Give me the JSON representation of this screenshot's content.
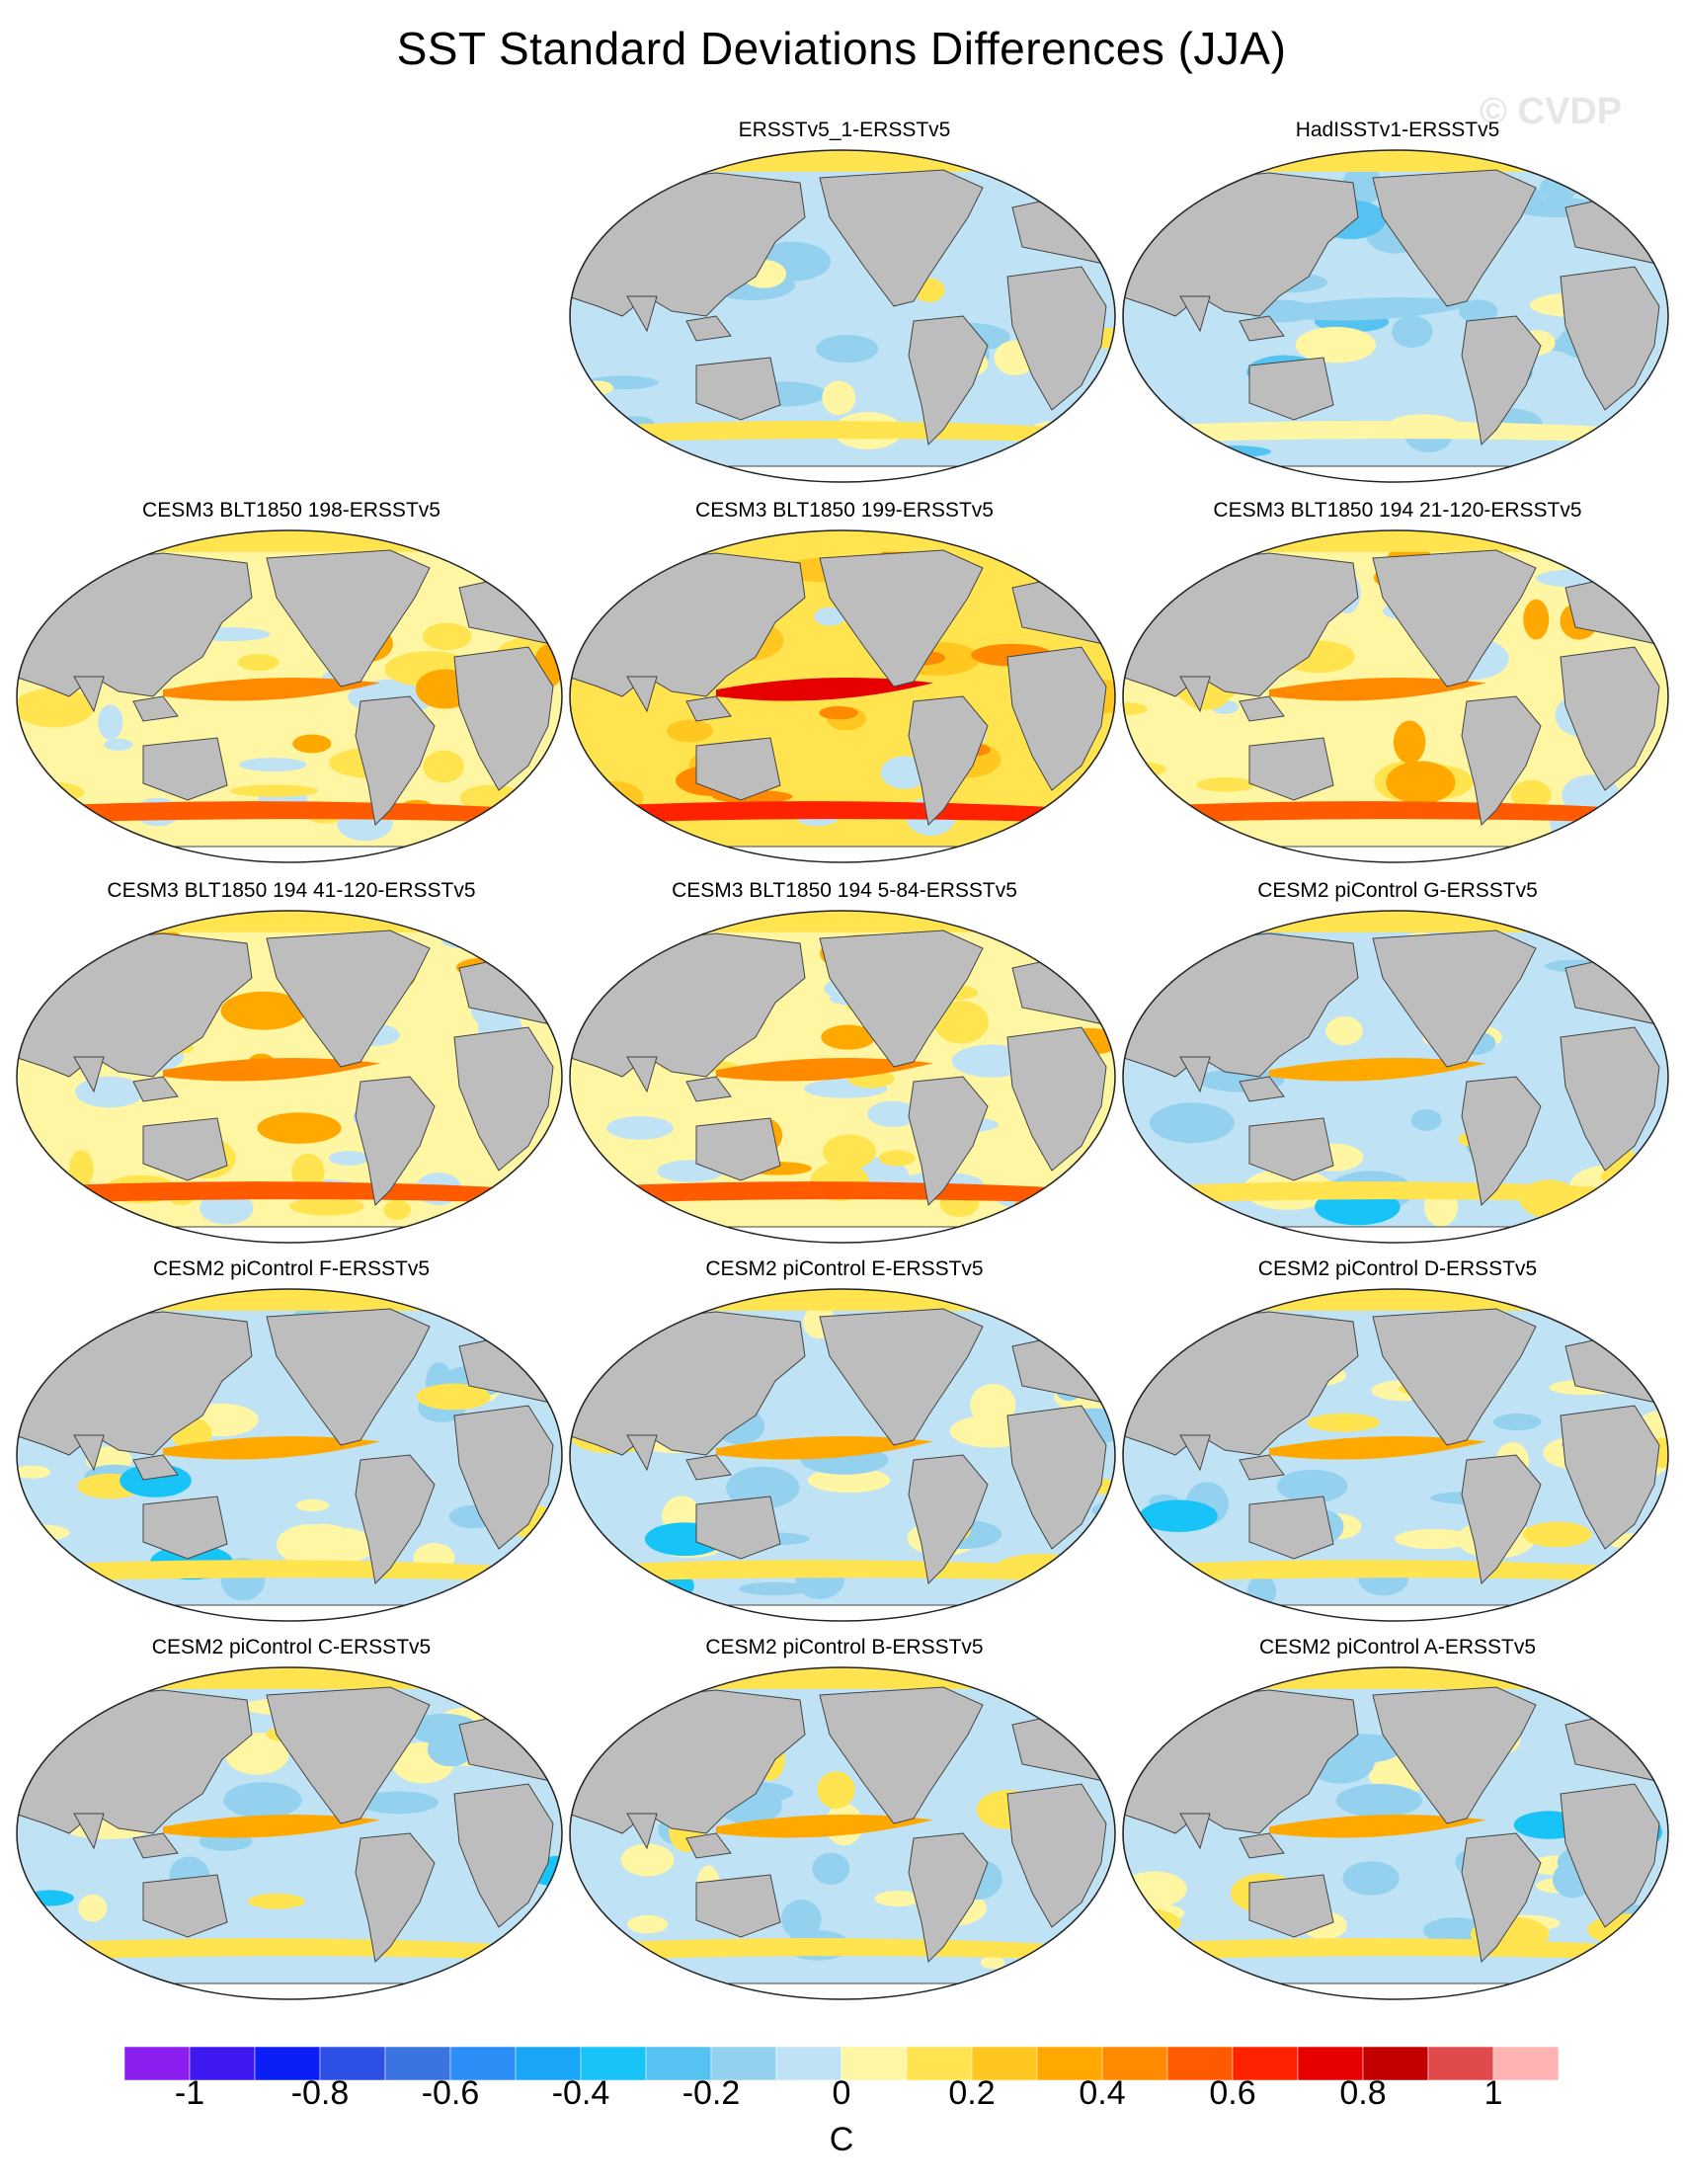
{
  "title": "SST Standard Deviations Differences (JJA)",
  "watermark": "© CVDP",
  "panels": [
    {
      "title": "ERSSTv5_1-ERSSTv5",
      "pattern": "obs-weak"
    },
    {
      "title": "HadISSTv1-ERSSTv5",
      "pattern": "obs-cool"
    },
    {
      "title": "CESM3 BLT1850 198-ERSSTv5",
      "pattern": "warm"
    },
    {
      "title": "CESM3 BLT1850 199-ERSSTv5",
      "pattern": "very-warm"
    },
    {
      "title": "CESM3 BLT1850 194 21-120-ERSSTv5",
      "pattern": "warm"
    },
    {
      "title": "CESM3 BLT1850 194 41-120-ERSSTv5",
      "pattern": "warm"
    },
    {
      "title": "CESM3 BLT1850 194 5-84-ERSSTv5",
      "pattern": "warm"
    },
    {
      "title": "CESM2 piControl G-ERSSTv5",
      "pattern": "mixed"
    },
    {
      "title": "CESM2 piControl F-ERSSTv5",
      "pattern": "mixed"
    },
    {
      "title": "CESM2 piControl E-ERSSTv5",
      "pattern": "mixed"
    },
    {
      "title": "CESM2 piControl D-ERSSTv5",
      "pattern": "mixed"
    },
    {
      "title": "CESM2 piControl C-ERSSTv5",
      "pattern": "mixed"
    },
    {
      "title": "CESM2 piControl B-ERSSTv5",
      "pattern": "mixed"
    },
    {
      "title": "CESM2 piControl A-ERSSTv5",
      "pattern": "mixed"
    }
  ],
  "colorbar": {
    "units": "C",
    "labels": [
      "-1",
      "-0.8",
      "-0.6",
      "-0.4",
      "-0.2",
      "0",
      "0.2",
      "0.4",
      "0.6",
      "0.8",
      "1"
    ],
    "colors": [
      "#8c1ff0",
      "#3f18f0",
      "#0a1ef5",
      "#2e4fe3",
      "#3a74e0",
      "#2e8ef7",
      "#19a6f7",
      "#17c3f7",
      "#55c2f2",
      "#93d1ef",
      "#bfe3f5",
      "#fff6a3",
      "#ffe34f",
      "#ffc71f",
      "#ffa800",
      "#ff8a00",
      "#ff5a00",
      "#ff2200",
      "#e60000",
      "#c20000",
      "#e04a4a",
      "#ffb3b3"
    ]
  },
  "land_color": "#bdbdbd"
}
